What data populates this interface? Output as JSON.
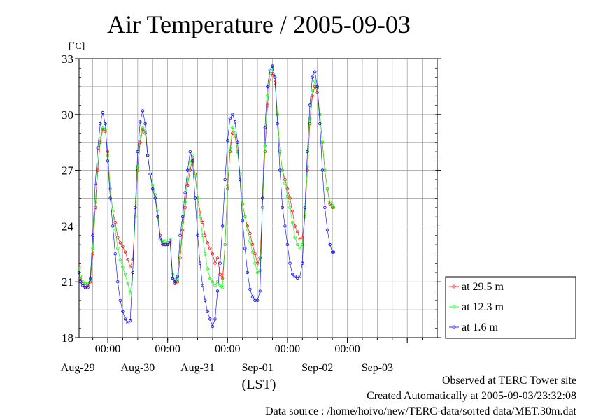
{
  "chart_data": {
    "type": "line",
    "title": "Air Temperature / 2005-09-03",
    "ylabel": "[˚C]",
    "xlabel": "(LST)",
    "ylim": [
      18,
      33
    ],
    "yticks": [
      18,
      21,
      24,
      27,
      30,
      33
    ],
    "x_unit": "hours from Aug-28 00:00 (LST)",
    "xlim": [
      12.5,
      156
    ],
    "time_tick_label": "00:00",
    "date_labels": [
      "Aug-29",
      "Aug-30",
      "Aug-31",
      "Sep-01",
      "Sep-02",
      "Sep-03"
    ],
    "grid": true,
    "legend_position": "right",
    "series": [
      {
        "name": "at 29.5 m",
        "color": "#ff0000",
        "points": [
          [
            12.5,
            21.8
          ],
          [
            13,
            21.2
          ],
          [
            14,
            20.9
          ],
          [
            15,
            20.7
          ],
          [
            16,
            20.8
          ],
          [
            17,
            21
          ],
          [
            18,
            22.5
          ],
          [
            19,
            25
          ],
          [
            20,
            27
          ],
          [
            21,
            28.5
          ],
          [
            22,
            29.2
          ],
          [
            23,
            29.1
          ],
          [
            24,
            28
          ],
          [
            25,
            26
          ],
          [
            26,
            24.8
          ],
          [
            27,
            24.2
          ],
          [
            28,
            23.4
          ],
          [
            29,
            23.1
          ],
          [
            30,
            22.9
          ],
          [
            31,
            22.6
          ],
          [
            32,
            22.2
          ],
          [
            33,
            21.8
          ],
          [
            34,
            22.2
          ],
          [
            35,
            24.5
          ],
          [
            36,
            27
          ],
          [
            37,
            28.5
          ],
          [
            38,
            29.2
          ],
          [
            39,
            29
          ],
          [
            40,
            27.8
          ],
          [
            41,
            26.8
          ],
          [
            42,
            26
          ],
          [
            43,
            25.5
          ],
          [
            44,
            24.8
          ],
          [
            45,
            23.5
          ],
          [
            46,
            23.1
          ],
          [
            47,
            23
          ],
          [
            48,
            23
          ],
          [
            49,
            23.1
          ],
          [
            50,
            21.2
          ],
          [
            51,
            20.9
          ],
          [
            52,
            21
          ],
          [
            53,
            22.3
          ],
          [
            54,
            23.8
          ],
          [
            55,
            25
          ],
          [
            56,
            26.2
          ],
          [
            57,
            27
          ],
          [
            58,
            27.6
          ],
          [
            59,
            26.8
          ],
          [
            60,
            25.5
          ],
          [
            61,
            24.8
          ],
          [
            62,
            24.2
          ],
          [
            63,
            23.5
          ],
          [
            64,
            23.1
          ],
          [
            65,
            22.8
          ],
          [
            66,
            22.5
          ],
          [
            67,
            22
          ],
          [
            68,
            22.3
          ],
          [
            69,
            21.4
          ],
          [
            70,
            21.2
          ],
          [
            71,
            23
          ],
          [
            72,
            26
          ],
          [
            73,
            28
          ],
          [
            74,
            29
          ],
          [
            75,
            28.8
          ],
          [
            76,
            28
          ],
          [
            77,
            26.8
          ],
          [
            78,
            25.2
          ],
          [
            79,
            24.5
          ],
          [
            80,
            24
          ],
          [
            81,
            23.6
          ],
          [
            82,
            23
          ],
          [
            83,
            22.5
          ],
          [
            84,
            22
          ],
          [
            85,
            22.3
          ],
          [
            86,
            25
          ],
          [
            87,
            28
          ],
          [
            88,
            30.5
          ],
          [
            89,
            31.8
          ],
          [
            90,
            32.2
          ],
          [
            91,
            31.7
          ],
          [
            92,
            30
          ],
          [
            93,
            28
          ],
          [
            94,
            27
          ],
          [
            95,
            26.5
          ],
          [
            96,
            26
          ],
          [
            97,
            25.5
          ],
          [
            98,
            24.8
          ],
          [
            99,
            24
          ],
          [
            100,
            23.7
          ],
          [
            101,
            23.3
          ],
          [
            102,
            23.4
          ],
          [
            103,
            24.5
          ],
          [
            104,
            27
          ],
          [
            105,
            29.5
          ],
          [
            106,
            31
          ],
          [
            107,
            31.5
          ],
          [
            108,
            31.2
          ],
          [
            109,
            30
          ],
          [
            110,
            28.5
          ],
          [
            111,
            27
          ],
          [
            112,
            26
          ],
          [
            113,
            25.2
          ],
          [
            114,
            25
          ],
          [
            114.5,
            25
          ]
        ]
      },
      {
        "name": "at 12.3 m",
        "color": "#00ff00",
        "points": [
          [
            12.5,
            21.7
          ],
          [
            13,
            21.3
          ],
          [
            14,
            21
          ],
          [
            15,
            20.9
          ],
          [
            16,
            20.9
          ],
          [
            17,
            21.1
          ],
          [
            18,
            22.8
          ],
          [
            19,
            25.3
          ],
          [
            20,
            27.3
          ],
          [
            21,
            28.7
          ],
          [
            22,
            29.3
          ],
          [
            23,
            29.2
          ],
          [
            24,
            27.8
          ],
          [
            25,
            26
          ],
          [
            26,
            24.8
          ],
          [
            27,
            23.8
          ],
          [
            28,
            22.8
          ],
          [
            29,
            22.2
          ],
          [
            30,
            21.8
          ],
          [
            31,
            21.4
          ],
          [
            32,
            20.9
          ],
          [
            33,
            20.4
          ],
          [
            34,
            21.5
          ],
          [
            35,
            24.5
          ],
          [
            36,
            27.2
          ],
          [
            37,
            28.8
          ],
          [
            38,
            29.3
          ],
          [
            39,
            29.1
          ],
          [
            40,
            27.8
          ],
          [
            41,
            26.8
          ],
          [
            42,
            26.2
          ],
          [
            43,
            25.7
          ],
          [
            44,
            24.8
          ],
          [
            45,
            23.3
          ],
          [
            46,
            23.2
          ],
          [
            47,
            23.2
          ],
          [
            48,
            23.1
          ],
          [
            49,
            23.3
          ],
          [
            50,
            21.4
          ],
          [
            51,
            21.1
          ],
          [
            52,
            21.1
          ],
          [
            53,
            22.6
          ],
          [
            54,
            24.2
          ],
          [
            55,
            25.3
          ],
          [
            56,
            26.5
          ],
          [
            57,
            27.4
          ],
          [
            58,
            27.8
          ],
          [
            59,
            26.7
          ],
          [
            60,
            25.5
          ],
          [
            61,
            24.5
          ],
          [
            62,
            23.5
          ],
          [
            63,
            22.5
          ],
          [
            64,
            21.7
          ],
          [
            65,
            21.2
          ],
          [
            66,
            21
          ],
          [
            67,
            20.8
          ],
          [
            68,
            21
          ],
          [
            69,
            20.8
          ],
          [
            70,
            20.7
          ],
          [
            71,
            23
          ],
          [
            72,
            26.2
          ],
          [
            73,
            28.2
          ],
          [
            74,
            29.3
          ],
          [
            75,
            29
          ],
          [
            76,
            28
          ],
          [
            77,
            26.8
          ],
          [
            78,
            25.2
          ],
          [
            79,
            24.5
          ],
          [
            80,
            23.8
          ],
          [
            81,
            23.2
          ],
          [
            82,
            22.6
          ],
          [
            83,
            22
          ],
          [
            84,
            21.5
          ],
          [
            85,
            21.6
          ],
          [
            86,
            25
          ],
          [
            87,
            28.3
          ],
          [
            88,
            31
          ],
          [
            89,
            32.2
          ],
          [
            90,
            32.5
          ],
          [
            91,
            32
          ],
          [
            92,
            30
          ],
          [
            93,
            28
          ],
          [
            94,
            27
          ],
          [
            95,
            26.3
          ],
          [
            96,
            25.6
          ],
          [
            97,
            25
          ],
          [
            98,
            24.2
          ],
          [
            99,
            23.4
          ],
          [
            100,
            23
          ],
          [
            101,
            22.8
          ],
          [
            102,
            23
          ],
          [
            103,
            24.5
          ],
          [
            104,
            27.2
          ],
          [
            105,
            29.8
          ],
          [
            106,
            31.3
          ],
          [
            107,
            31.8
          ],
          [
            108,
            31.4
          ],
          [
            109,
            30
          ],
          [
            110,
            28.5
          ],
          [
            111,
            27
          ],
          [
            112,
            26
          ],
          [
            113,
            25.3
          ],
          [
            114,
            25.1
          ],
          [
            114.5,
            25
          ]
        ]
      },
      {
        "name": "at 1.6 m",
        "color": "#0000ff",
        "points": [
          [
            12.5,
            21.5
          ],
          [
            13,
            21
          ],
          [
            14,
            20.8
          ],
          [
            15,
            20.7
          ],
          [
            16,
            20.7
          ],
          [
            17,
            21.2
          ],
          [
            18,
            23.5
          ],
          [
            19,
            26.3
          ],
          [
            20,
            28.2
          ],
          [
            21,
            29.5
          ],
          [
            22,
            30.1
          ],
          [
            23,
            29.5
          ],
          [
            24,
            27.5
          ],
          [
            25,
            25.5
          ],
          [
            26,
            24
          ],
          [
            27,
            22.5
          ],
          [
            28,
            21
          ],
          [
            29,
            20
          ],
          [
            30,
            19.4
          ],
          [
            31,
            19
          ],
          [
            32,
            18.8
          ],
          [
            33,
            18.9
          ],
          [
            34,
            21.5
          ],
          [
            35,
            25
          ],
          [
            36,
            28
          ],
          [
            37,
            29.6
          ],
          [
            38,
            30.2
          ],
          [
            39,
            29.5
          ],
          [
            40,
            27.8
          ],
          [
            41,
            26.8
          ],
          [
            42,
            26
          ],
          [
            43,
            25.5
          ],
          [
            44,
            24.5
          ],
          [
            45,
            23.3
          ],
          [
            46,
            23
          ],
          [
            47,
            23
          ],
          [
            48,
            23
          ],
          [
            49,
            23.2
          ],
          [
            50,
            21.2
          ],
          [
            51,
            21
          ],
          [
            52,
            21.3
          ],
          [
            53,
            23.5
          ],
          [
            54,
            24.5
          ],
          [
            55,
            25.8
          ],
          [
            56,
            27
          ],
          [
            57,
            28
          ],
          [
            58,
            27.5
          ],
          [
            59,
            25.5
          ],
          [
            60,
            23.5
          ],
          [
            61,
            22
          ],
          [
            62,
            20.8
          ],
          [
            63,
            20
          ],
          [
            64,
            19.4
          ],
          [
            65,
            19
          ],
          [
            66,
            18.6
          ],
          [
            67,
            19
          ],
          [
            68,
            20.5
          ],
          [
            69,
            22
          ],
          [
            70,
            24
          ],
          [
            71,
            26.5
          ],
          [
            72,
            28.6
          ],
          [
            73,
            29.8
          ],
          [
            74,
            30
          ],
          [
            75,
            29.6
          ],
          [
            76,
            28.5
          ],
          [
            77,
            26.5
          ],
          [
            78,
            24.3
          ],
          [
            79,
            22.8
          ],
          [
            80,
            21.5
          ],
          [
            81,
            20.6
          ],
          [
            82,
            20.2
          ],
          [
            83,
            20
          ],
          [
            84,
            20
          ],
          [
            85,
            20.5
          ],
          [
            86,
            25.5
          ],
          [
            87,
            29.3
          ],
          [
            88,
            31.5
          ],
          [
            89,
            32.4
          ],
          [
            90,
            32.6
          ],
          [
            91,
            32
          ],
          [
            92,
            29.5
          ],
          [
            93,
            27
          ],
          [
            94,
            25
          ],
          [
            95,
            24
          ],
          [
            96,
            23
          ],
          [
            97,
            22
          ],
          [
            98,
            21.4
          ],
          [
            99,
            21.3
          ],
          [
            100,
            21.2
          ],
          [
            101,
            21.3
          ],
          [
            102,
            22
          ],
          [
            103,
            25
          ],
          [
            104,
            28
          ],
          [
            105,
            30.5
          ],
          [
            106,
            32
          ],
          [
            107,
            32.3
          ],
          [
            108,
            31.5
          ],
          [
            109,
            29.5
          ],
          [
            110,
            27
          ],
          [
            111,
            25
          ],
          [
            112,
            23.8
          ],
          [
            113,
            23
          ],
          [
            114,
            22.6
          ],
          [
            114.5,
            22.6
          ]
        ]
      }
    ]
  },
  "footer": {
    "site": "Observed at TERC Tower site",
    "created": "Created Automatically at 2005-09-03/23:32:08",
    "source": "Data source : /home/hoivo/new/TERC-data/sorted  data/MET.30m.dat"
  }
}
